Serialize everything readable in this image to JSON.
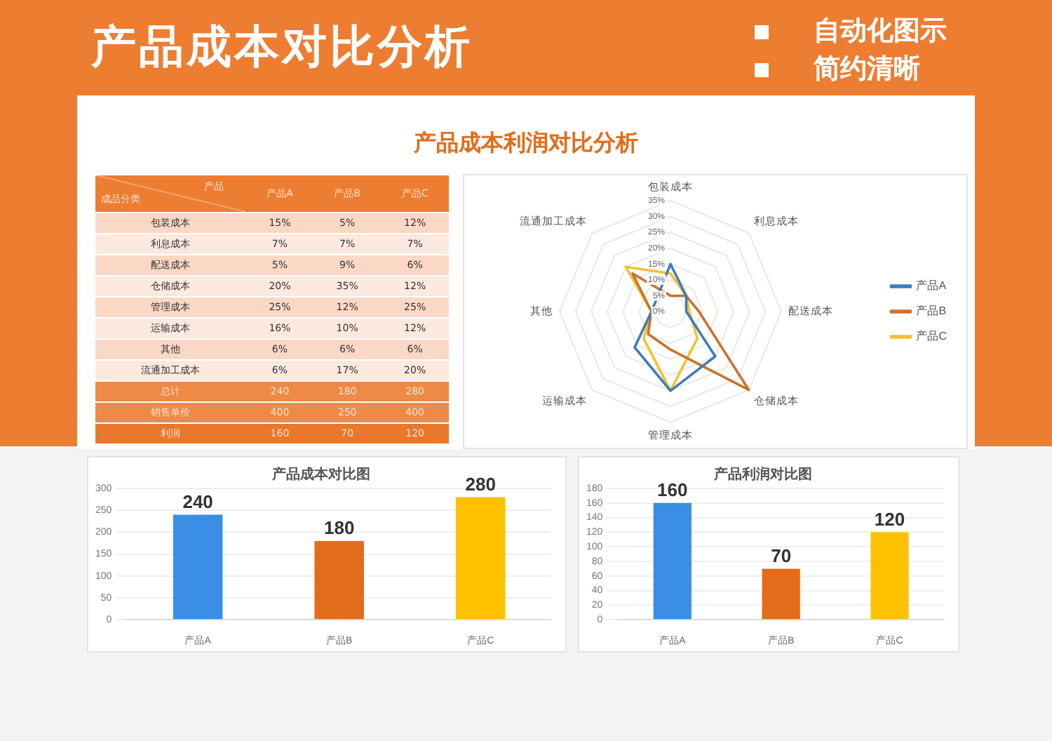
{
  "chart_data": [
    {
      "type": "other",
      "title": "产品成本对比分析",
      "annotations": [
        "自动化图示",
        "简约清晰"
      ]
    },
    {
      "type": "heatmap",
      "title": "产品成本利润对比分析",
      "xlabel": "产品",
      "ylabel": "成品分类",
      "categories": [
        "产品A",
        "产品B",
        "产品C"
      ],
      "y_categories": [
        "包装成本",
        "利息成本",
        "配送成本",
        "仓储成本",
        "管理成本",
        "运输成本",
        "其他",
        "流通加工成本",
        "总计",
        "销售单价",
        "利润"
      ],
      "cells": [
        [
          15,
          5,
          12
        ],
        [
          7,
          7,
          7
        ],
        [
          5,
          9,
          6
        ],
        [
          20,
          35,
          12
        ],
        [
          25,
          12,
          25
        ],
        [
          16,
          10,
          12
        ],
        [
          6,
          6,
          6
        ],
        [
          6,
          17,
          20
        ],
        [
          240,
          180,
          280
        ],
        [
          400,
          250,
          400
        ],
        [
          160,
          70,
          120
        ]
      ],
      "cell_labels": [
        [
          "15%",
          "5%",
          "12%"
        ],
        [
          "7%",
          "7%",
          "7%"
        ],
        [
          "5%",
          "9%",
          "6%"
        ],
        [
          "20%",
          "35%",
          "12%"
        ],
        [
          "25%",
          "12%",
          "25%"
        ],
        [
          "16%",
          "10%",
          "12%"
        ],
        [
          "6%",
          "6%",
          "6%"
        ],
        [
          "6%",
          "17%",
          "20%"
        ],
        [
          "240",
          "180",
          "280"
        ],
        [
          "400",
          "250",
          "400"
        ],
        [
          "160",
          "70",
          "120"
        ]
      ]
    },
    {
      "type": "radar",
      "categories": [
        "包装成本",
        "利息成本",
        "配送成本",
        "仓储成本",
        "管理成本",
        "运输成本",
        "其他",
        "流通加工成本"
      ],
      "series": [
        {
          "name": "产品A",
          "color": "#3f7bbf",
          "values": [
            15,
            7,
            5,
            20,
            25,
            16,
            6,
            6
          ]
        },
        {
          "name": "产品B",
          "color": "#c9732e",
          "values": [
            5,
            7,
            9,
            35,
            12,
            10,
            6,
            17
          ]
        },
        {
          "name": "产品C",
          "color": "#f5c12e",
          "values": [
            12,
            7,
            6,
            12,
            25,
            12,
            6,
            20
          ]
        }
      ],
      "ylim": [
        0,
        35
      ],
      "yticks": [
        {
          "value": 0,
          "label": "0%"
        },
        {
          "value": 5,
          "label": "5%"
        },
        {
          "value": 10,
          "label": "10%"
        },
        {
          "value": 15,
          "label": "15%"
        },
        {
          "value": 20,
          "label": "20%"
        },
        {
          "value": 25,
          "label": "25%"
        },
        {
          "value": 30,
          "label": "30%"
        },
        {
          "value": 35,
          "label": "35%"
        }
      ],
      "grid": true,
      "legend": "right"
    },
    {
      "type": "bar",
      "title": "产品成本对比图",
      "categories": [
        "产品A",
        "产品B",
        "产品C"
      ],
      "values": [
        240,
        180,
        280
      ],
      "colors": [
        "#3a8ee6",
        "#e36c1a",
        "#ffc000"
      ],
      "ylim": [
        0,
        300
      ],
      "yticks": [
        0,
        50,
        100,
        150,
        200,
        250,
        300
      ],
      "grid": "y",
      "data_labels": true
    },
    {
      "type": "bar",
      "title": "产品利润对比图",
      "categories": [
        "产品A",
        "产品B",
        "产品C"
      ],
      "values": [
        160,
        70,
        120
      ],
      "colors": [
        "#3a8ee6",
        "#e36c1a",
        "#ffc000"
      ],
      "ylim": [
        0,
        180
      ],
      "yticks": [
        0,
        20,
        40,
        60,
        80,
        100,
        120,
        140,
        160,
        180
      ],
      "grid": "y",
      "data_labels": true
    }
  ]
}
